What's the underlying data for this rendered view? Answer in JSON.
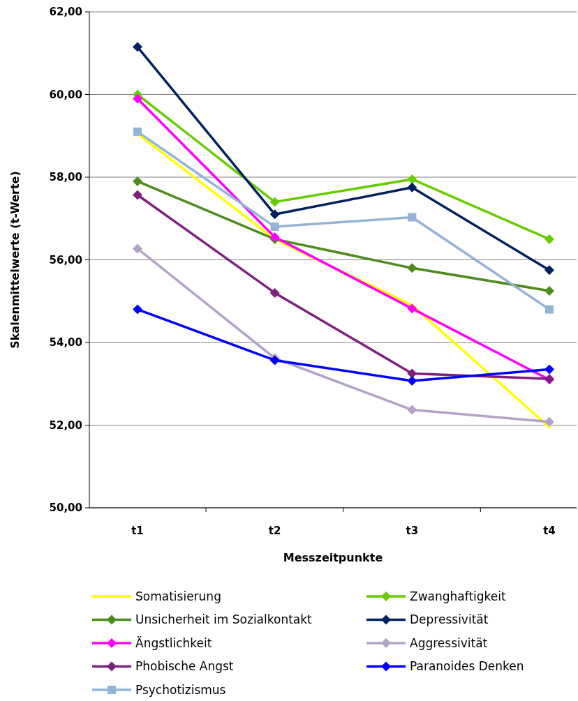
{
  "chart_data": {
    "type": "line",
    "xlabel": "Messzeitpunkte",
    "ylabel": "Skalenmittelwerte (t-Werte)",
    "categories": [
      "t1",
      "t2",
      "t3",
      "t4"
    ],
    "ylim": [
      50,
      62
    ],
    "yticks": [
      {
        "value": 50,
        "label": "50,00"
      },
      {
        "value": 52,
        "label": "52,00"
      },
      {
        "value": 54,
        "label": "54,00"
      },
      {
        "value": 56,
        "label": "56,00"
      },
      {
        "value": 58,
        "label": "58,00"
      },
      {
        "value": 60,
        "label": "60,00"
      },
      {
        "value": 62,
        "label": "62,00"
      }
    ],
    "grid": "y",
    "legend": "bottom",
    "series": [
      {
        "name": "Somatisierung",
        "color": "#ffff00",
        "marker": "none",
        "values": [
          59.05,
          56.5,
          54.9,
          51.95
        ]
      },
      {
        "name": "Zwanghaftigkeit",
        "color": "#66cc00",
        "marker": "diamond",
        "values": [
          60.0,
          57.4,
          57.95,
          56.5
        ]
      },
      {
        "name": "Unsicherheit im Sozialkontakt",
        "color": "#4c8c1c",
        "marker": "diamond",
        "values": [
          57.9,
          56.5,
          55.8,
          55.25
        ]
      },
      {
        "name": "Depressivität",
        "color": "#002060",
        "marker": "diamond",
        "values": [
          61.15,
          57.1,
          57.75,
          55.75
        ]
      },
      {
        "name": "Ängstlichkeit",
        "color": "#ff00ff",
        "marker": "diamond",
        "values": [
          59.9,
          56.55,
          54.82,
          53.1
        ]
      },
      {
        "name": "Aggressivität",
        "color": "#b3a2c7",
        "marker": "diamond",
        "values": [
          56.27,
          53.62,
          52.37,
          52.08
        ]
      },
      {
        "name": "Phobische Angst",
        "color": "#7f1f7f",
        "marker": "diamond",
        "values": [
          57.57,
          55.2,
          53.25,
          53.12
        ]
      },
      {
        "name": "Paranoides Denken",
        "color": "#0000ff",
        "marker": "diamond",
        "values": [
          54.8,
          53.57,
          53.07,
          53.35
        ]
      },
      {
        "name": "Psychotizismus",
        "color": "#95b3d7",
        "marker": "square",
        "values": [
          59.1,
          56.8,
          57.03,
          54.8
        ]
      }
    ]
  }
}
